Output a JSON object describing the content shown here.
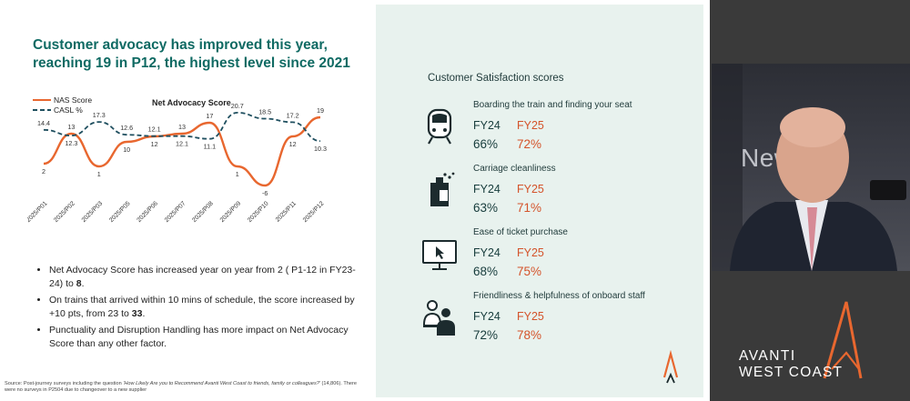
{
  "slide": {
    "headline": "Customer advocacy has improved this year, reaching 19 in P12, the highest level since 2021",
    "bullets": [
      {
        "pre": "Net Advocacy Score has increased year on year from 2 ( P1-12 in FY23-24) to ",
        "bold": "8",
        "post": "."
      },
      {
        "pre": "On trains that arrived within 10 mins of schedule, the score increased by +10 pts, from 23 to ",
        "bold": "33",
        "post": "."
      },
      {
        "pre": "Punctuality and Disruption Handling has more impact on Net Advocacy Score than any other factor.",
        "bold": "",
        "post": ""
      }
    ],
    "source_prefix": "Source: Post-journey surveys including the question ",
    "source_question": "'How Likely Are you to Recommend Avanti West Coast to friends, family or colleagues?'",
    "source_suffix": " (14,806). There were no surveys in P2504 due to changeover to a new supplier"
  },
  "chart_data": {
    "type": "line",
    "title": "Net Advocacy Score",
    "categories": [
      "2025/P01",
      "2025/P02",
      "2025/P03",
      "2025/P05",
      "2025/P06",
      "2025/P07",
      "2025/P08",
      "2025/P09",
      "2025/P10",
      "2025/P11",
      "2025/P12"
    ],
    "series": [
      {
        "name": "NAS Score",
        "color": "#e8672f",
        "style": "solid",
        "values": [
          2,
          13,
          1,
          10,
          12,
          13,
          17,
          1,
          -6,
          12,
          19
        ],
        "labels": [
          "2",
          "13",
          "1",
          "10",
          "12",
          "13",
          "17",
          "1",
          "-6",
          "12",
          "19"
        ]
      },
      {
        "name": "CASL %",
        "color": "#1f4f5f",
        "style": "dashed",
        "values": [
          14.4,
          12.3,
          17.3,
          12.6,
          12.1,
          12.1,
          11.1,
          20.7,
          18.5,
          17.2,
          10.3
        ],
        "labels": [
          "14.4",
          "12.3",
          "17.3",
          "12.6",
          "12.1",
          "12.1",
          "11.1",
          "20.7",
          "18.5",
          "17.2",
          "10.3"
        ]
      }
    ],
    "ylim": [
      -8,
      22
    ],
    "grid": false,
    "legend_position": "top-left"
  },
  "panel": {
    "title": "Customer Satisfaction scores",
    "items": [
      {
        "title": "Boarding the train and finding your seat",
        "fy24_label": "FY24",
        "fy25_label": "FY25",
        "fy24": "66%",
        "fy25": "72%",
        "icon": "train-icon"
      },
      {
        "title": "Carriage cleanliness",
        "fy24_label": "FY24",
        "fy25_label": "FY25",
        "fy24": "63%",
        "fy25": "71%",
        "icon": "cleaning-icon"
      },
      {
        "title": "Ease of ticket purchase",
        "fy24_label": "FY24",
        "fy25_label": "FY25",
        "fy24": "68%",
        "fy25": "75%",
        "icon": "computer-icon"
      },
      {
        "title": "Friendliness & helpfulness of onboard staff",
        "fy24_label": "FY24",
        "fy25_label": "FY25",
        "fy24": "72%",
        "fy25": "78%",
        "icon": "staff-icon"
      }
    ]
  },
  "video": {
    "background_text": "New"
  },
  "brand": {
    "line1": "AVANTI",
    "line2": "WEST COAST",
    "accent": "#e8672f"
  }
}
